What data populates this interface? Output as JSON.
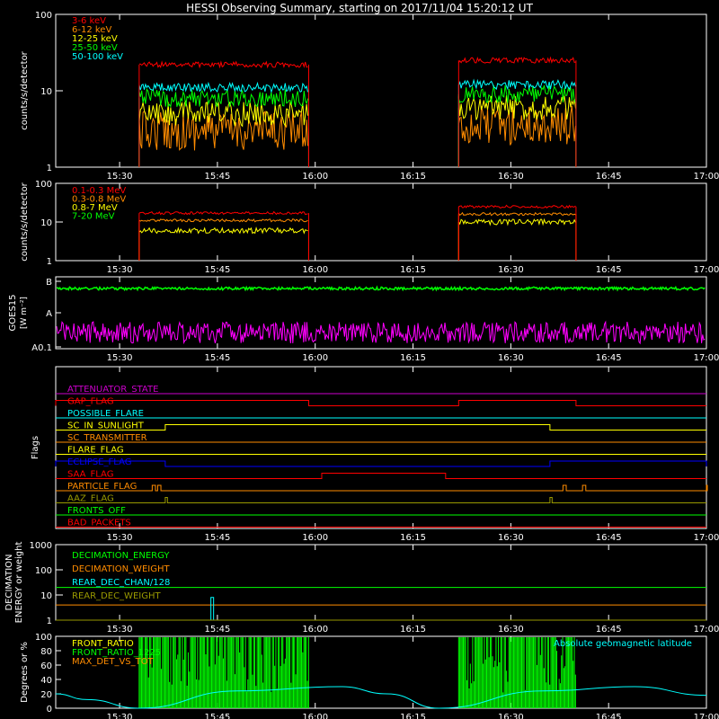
{
  "title": "HESSI Observing Summary, starting on 2017/11/04 15:20:12 UT",
  "colors": {
    "background": "#000000",
    "frame": "#ffffff",
    "red": "#ff0000",
    "orange": "#ff8c00",
    "yellow": "#ffff00",
    "green": "#00ff00",
    "cyan": "#00ffff",
    "magenta": "#ff00ff",
    "blue": "#0000ff",
    "olive": "#999900",
    "purple": "#cc00cc"
  },
  "time_axis": {
    "start": "15:20:12",
    "end": "17:00",
    "tick_labels": [
      "15:30",
      "15:45",
      "16:00",
      "16:15",
      "16:30",
      "16:45",
      "17:00"
    ]
  },
  "chart_data": [
    {
      "id": "panel1",
      "type": "line",
      "ylabel": "counts/s/detector",
      "y_scale": "log",
      "ylim": [
        1,
        100
      ],
      "y_tick_labels": [
        "1",
        "10",
        "100"
      ],
      "observing_intervals": [
        [
          "15:33",
          "15:59"
        ],
        [
          "16:22",
          "16:40"
        ]
      ],
      "series": [
        {
          "name": "3-6 keV",
          "color": "#ff0000",
          "levels": [
            22,
            25
          ]
        },
        {
          "name": "6-12 keV",
          "color": "#ff8c00",
          "levels": [
            3,
            3.5
          ]
        },
        {
          "name": "12-25 keV",
          "color": "#ffff00",
          "levels": [
            5,
            6
          ]
        },
        {
          "name": "25-50 keV",
          "color": "#00ff00",
          "levels": [
            8,
            9
          ]
        },
        {
          "name": "50-100 keV",
          "color": "#00ffff",
          "levels": [
            11,
            12
          ]
        }
      ]
    },
    {
      "id": "panel2",
      "type": "line",
      "ylabel": "counts/s/detector",
      "y_scale": "log",
      "ylim": [
        1,
        100
      ],
      "y_tick_labels": [
        "1",
        "10",
        "100"
      ],
      "observing_intervals": [
        [
          "15:33",
          "15:59"
        ],
        [
          "16:22",
          "16:40"
        ]
      ],
      "series": [
        {
          "name": "0.1-0.3 MeV",
          "color": "#ff0000",
          "levels": [
            17,
            25
          ]
        },
        {
          "name": "0.3-0.8 MeV",
          "color": "#ff8c00",
          "levels": [
            11,
            16
          ]
        },
        {
          "name": "0.8-7 MeV",
          "color": "#ffff00",
          "levels": [
            6,
            10
          ]
        },
        {
          "name": "7-20 MeV",
          "color": "#00ff00",
          "levels": [
            0,
            0
          ]
        }
      ]
    },
    {
      "id": "panel3",
      "type": "line",
      "ylabel": "GOES15",
      "ylabel_unit": "[W m⁻²]",
      "y_scale": "log",
      "y_tick_labels": [
        "A0.1",
        "A",
        "B"
      ],
      "series": [
        {
          "name": "GOES long channel",
          "color": "#00ff00",
          "level": "B-"
        },
        {
          "name": "GOES short channel",
          "color": "#ff00ff",
          "level": "A0.3"
        }
      ]
    },
    {
      "id": "panel4",
      "type": "line",
      "ylabel": "Flags",
      "flags": [
        {
          "name": "ATTENUATOR_STATE",
          "color": "#cc00cc",
          "high_intervals": []
        },
        {
          "name": "GAP_FLAG",
          "color": "#ff0000",
          "high_intervals": [
            [
              "15:20:12",
              "15:59"
            ],
            [
              "16:22",
              "16:40"
            ]
          ]
        },
        {
          "name": "POSSIBLE_FLARE",
          "color": "#00ffff",
          "high_intervals": []
        },
        {
          "name": "SC_IN_SUNLIGHT",
          "color": "#ffff00",
          "high_intervals": [
            [
              "15:37",
              "16:36"
            ]
          ]
        },
        {
          "name": "SC_TRANSMITTER",
          "color": "#ff8c00",
          "high_intervals": []
        },
        {
          "name": "FLARE_FLAG",
          "color": "#ffff00",
          "high_intervals": []
        },
        {
          "name": "ECLIPSE_FLAG",
          "color": "#0000ff",
          "high_intervals": [
            [
              "15:20:12",
              "15:37"
            ],
            [
              "16:36",
              "17:00"
            ]
          ]
        },
        {
          "name": "SAA_FLAG",
          "color": "#ff0000",
          "high_intervals": [
            [
              "16:01",
              "16:20"
            ]
          ]
        },
        {
          "name": "PARTICLE_FLAG",
          "color": "#ff8c00",
          "high_intervals": [
            [
              "15:35",
              "15:35:30"
            ],
            [
              "15:35:50",
              "15:36:20"
            ],
            [
              "16:38",
              "16:38:30"
            ],
            [
              "16:41",
              "16:41:30"
            ],
            [
              "17:00",
              "17:00"
            ]
          ]
        },
        {
          "name": "AAZ_FLAG",
          "color": "#999900",
          "high_intervals": [
            [
              "15:37",
              "15:37:20"
            ],
            [
              "16:36",
              "16:36:20"
            ]
          ]
        },
        {
          "name": "FRONTS_OFF",
          "color": "#00ff00",
          "high_intervals": []
        },
        {
          "name": "BAD_PACKETS",
          "color": "#ff0000",
          "high_intervals": []
        }
      ]
    },
    {
      "id": "panel5",
      "type": "line",
      "ylabel": "DECIMATION",
      "ylabel2": "ENERGY or weight",
      "y_scale": "log",
      "ylim": [
        1,
        1000
      ],
      "y_tick_labels": [
        "1",
        "10",
        "100",
        "1000"
      ],
      "series": [
        {
          "name": "DECIMATION_ENERGY",
          "color": "#00ff00",
          "level": 20
        },
        {
          "name": "DECIMATION_WEIGHT",
          "color": "#ff8c00",
          "level": 4
        },
        {
          "name": "REAR_DEC_CHAN/128",
          "color": "#00ffff",
          "level": 1,
          "spike_at": "15:44",
          "spike_level": 8
        },
        {
          "name": "REAR_DEC_WEIGHT",
          "color": "#999900",
          "level": 1
        }
      ]
    },
    {
      "id": "panel6",
      "type": "line",
      "ylabel": "Degrees or %",
      "ylim": [
        0,
        100
      ],
      "y_tick_labels": [
        "0",
        "20",
        "40",
        "60",
        "80",
        "100"
      ],
      "series": [
        {
          "name": "FRONT_RATIO",
          "color": "#ffff00"
        },
        {
          "name": "FRONT_RATIO_1225",
          "color": "#00ff00"
        },
        {
          "name": "MAX_DET_VS_TOT",
          "color": "#ff8c00"
        }
      ],
      "annotation": {
        "text": "Absolute geomagnetic latitude",
        "color": "#00ffff"
      },
      "geomag_latitude": {
        "times": [
          "15:20:12",
          "15:25",
          "15:33",
          "15:48",
          "16:04",
          "16:11",
          "16:19",
          "16:35",
          "16:49",
          "17:00"
        ],
        "values": [
          20,
          12,
          0,
          24,
          30,
          20,
          0,
          24,
          30,
          18
        ]
      },
      "green_bursts": [
        [
          "15:33",
          "15:59"
        ],
        [
          "16:22",
          "16:40"
        ]
      ]
    }
  ]
}
